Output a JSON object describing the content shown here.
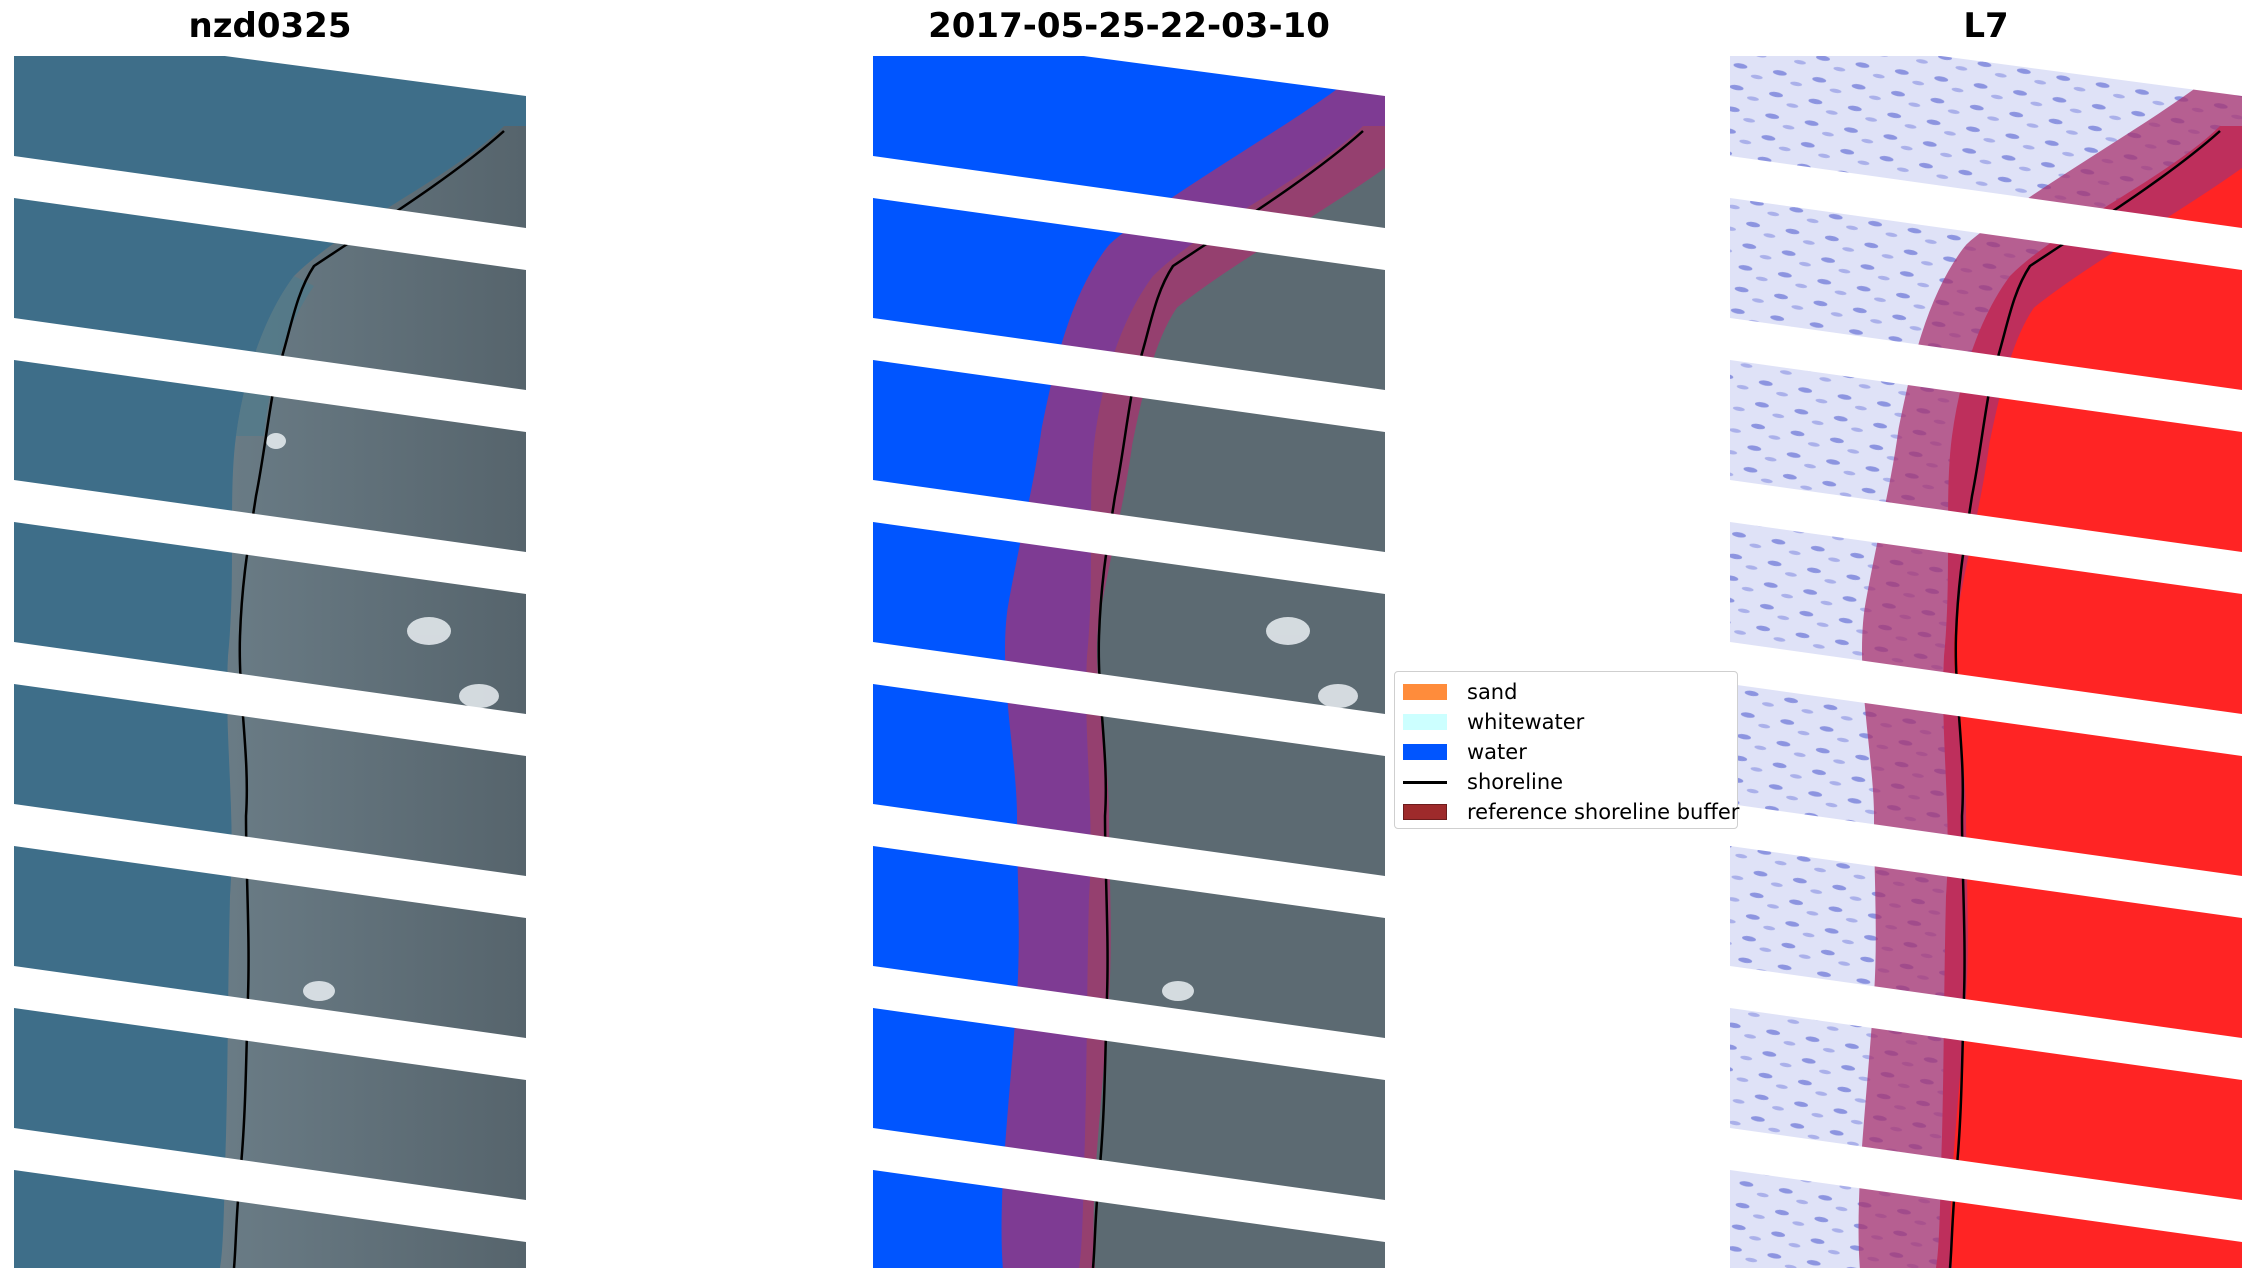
{
  "panels": [
    {
      "id": "rgb",
      "title": "nzd0325"
    },
    {
      "id": "classified",
      "title": "2017-05-25-22-03-10"
    },
    {
      "id": "index",
      "title": "L7"
    }
  ],
  "legend": {
    "items": [
      {
        "label": "sand",
        "color": "#ff8c3b",
        "kind": "patch"
      },
      {
        "label": "whitewater",
        "color": "#ccffff",
        "kind": "patch"
      },
      {
        "label": "water",
        "color": "#0055ff",
        "kind": "patch"
      },
      {
        "label": "shoreline",
        "color": "#000000",
        "kind": "line"
      },
      {
        "label": "reference shoreline buffer",
        "color": "#9e2a2b",
        "kind": "patch"
      }
    ]
  },
  "colors": {
    "sea_rgb": "#3f6f8a",
    "land_rgb": "#5d6b73",
    "water_class": "#0055ff",
    "buffer": "#a8336f",
    "index_high": "#ff2020",
    "index_low": "#d8dcf5",
    "gap": "#ffffff"
  }
}
